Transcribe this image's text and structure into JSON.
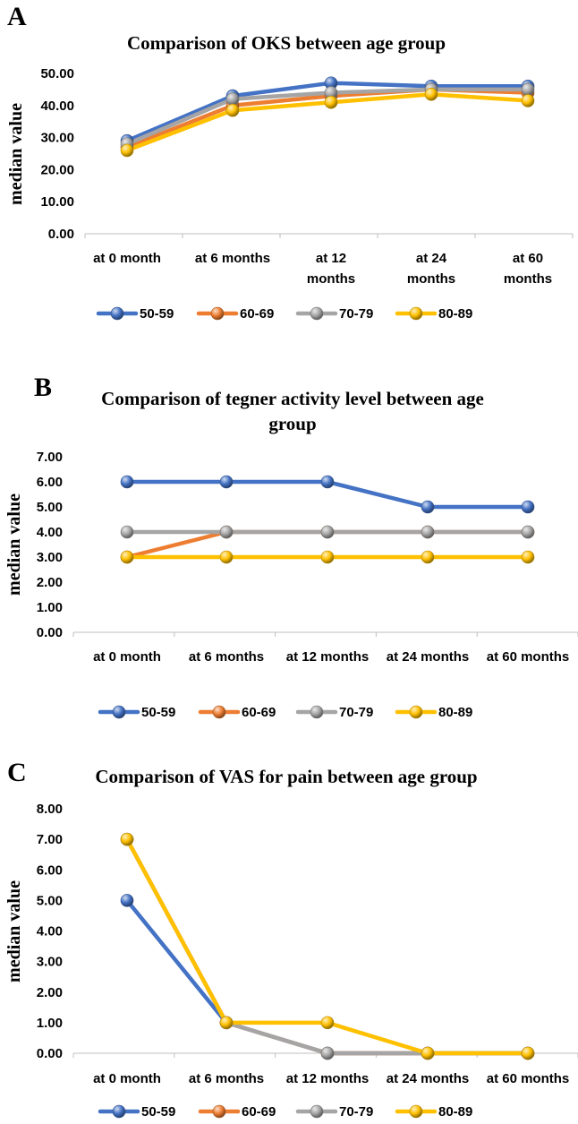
{
  "chart_data": [
    {
      "type": "line",
      "panel": "A",
      "title": "Comparison of OKS between age group",
      "xlabel": "",
      "ylabel": "median value",
      "ylim": [
        0,
        50
      ],
      "yticks": [
        "0.00",
        "10.00",
        "20.00",
        "30.00",
        "40.00",
        "50.00"
      ],
      "categories": [
        [
          "at 0 month"
        ],
        [
          "at 6 months"
        ],
        [
          "at 12",
          "months"
        ],
        [
          "at 24",
          "months"
        ],
        [
          "at 60",
          "months"
        ]
      ],
      "series": [
        {
          "name": "50-59",
          "color": "#4472C4",
          "values": [
            29,
            43,
            47,
            46,
            46
          ]
        },
        {
          "name": "60-69",
          "color": "#ED7D31",
          "values": [
            27,
            40,
            43,
            45,
            44
          ]
        },
        {
          "name": "70-79",
          "color": "#A5A5A5",
          "values": [
            28,
            42,
            44,
            45,
            45
          ]
        },
        {
          "name": "80-89",
          "color": "#FFC000",
          "values": [
            26,
            38.5,
            41,
            43.5,
            41.5
          ]
        }
      ]
    },
    {
      "type": "line",
      "panel": "B",
      "title": "Comparison of tegner activity level between age group",
      "xlabel": "",
      "ylabel": "median value",
      "ylim": [
        0,
        7
      ],
      "yticks": [
        "0.00",
        "1.00",
        "2.00",
        "3.00",
        "4.00",
        "5.00",
        "6.00",
        "7.00"
      ],
      "categories": [
        [
          "at 0 month"
        ],
        [
          "at 6 months"
        ],
        [
          "at 12 months"
        ],
        [
          "at 24 months"
        ],
        [
          "at 60 months"
        ]
      ],
      "series": [
        {
          "name": "50-59",
          "color": "#4472C4",
          "values": [
            6,
            6,
            6,
            5,
            5
          ]
        },
        {
          "name": "60-69",
          "color": "#ED7D31",
          "values": [
            3,
            4,
            4,
            4,
            4
          ]
        },
        {
          "name": "70-79",
          "color": "#A5A5A5",
          "values": [
            4,
            4,
            4,
            4,
            4
          ]
        },
        {
          "name": "80-89",
          "color": "#FFC000",
          "values": [
            3,
            3,
            3,
            3,
            3
          ]
        }
      ]
    },
    {
      "type": "line",
      "panel": "C",
      "title": "Comparison of VAS for pain between age group",
      "xlabel": "",
      "ylabel": "median value",
      "ylim": [
        0,
        8
      ],
      "yticks": [
        "0.00",
        "1.00",
        "2.00",
        "3.00",
        "4.00",
        "5.00",
        "6.00",
        "7.00",
        "8.00"
      ],
      "categories": [
        [
          "at 0 month"
        ],
        [
          "at 6 months"
        ],
        [
          "at 12 months"
        ],
        [
          "at 24 months"
        ],
        [
          "at 60 months"
        ]
      ],
      "series": [
        {
          "name": "50-59",
          "color": "#4472C4",
          "values": [
            5,
            1,
            0,
            0,
            0
          ]
        },
        {
          "name": "60-69",
          "color": "#ED7D31",
          "values": [
            7,
            1,
            0,
            0,
            0
          ]
        },
        {
          "name": "70-79",
          "color": "#A5A5A5",
          "values": [
            7,
            1,
            0,
            0,
            0
          ]
        },
        {
          "name": "80-89",
          "color": "#FFC000",
          "values": [
            7,
            1,
            1,
            0,
            0
          ]
        }
      ]
    }
  ]
}
